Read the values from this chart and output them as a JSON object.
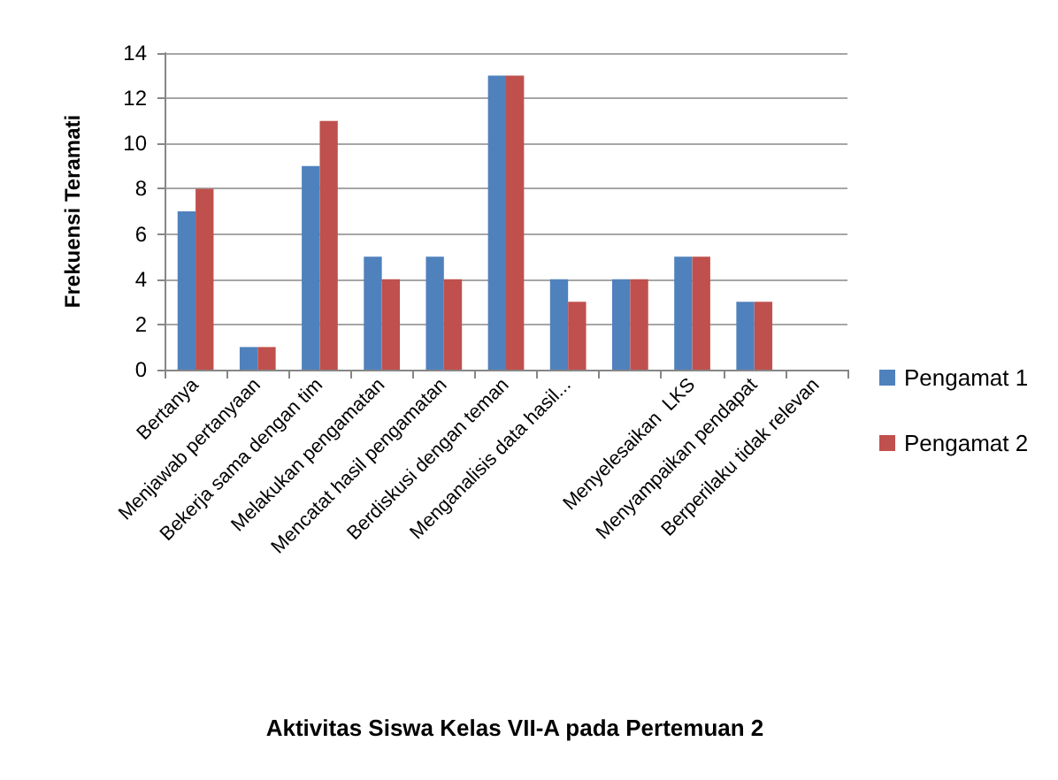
{
  "chart_data": {
    "type": "bar",
    "title": "Aktivitas Siswa Kelas VII-A pada Pertemuan 2",
    "ylabel": "Frekuensi Teramati",
    "categories": [
      "Bertanya",
      "Menjawab pertanyaan",
      "Bekerja sama dengan tim",
      "Melakukan pengamatan",
      "Mencatat hasil pengamatan",
      "Berdiskusi dengan teman",
      "Menganalisis data hasil...",
      null,
      "Menyelesaikan  LKS",
      "Menyampaikan pendapat",
      "Berperilaku tidak relevan"
    ],
    "series": [
      {
        "name": "Pengamat 1",
        "color": "#4f81bd",
        "values": [
          7,
          1,
          9,
          5,
          5,
          13,
          4,
          4,
          5,
          3,
          0
        ]
      },
      {
        "name": "Pengamat 2",
        "color": "#c0504d",
        "values": [
          8,
          1,
          11,
          4,
          4,
          13,
          3,
          4,
          5,
          3,
          0
        ]
      }
    ],
    "ylim": [
      0,
      14
    ],
    "yticks": [
      0,
      2,
      4,
      6,
      8,
      10,
      12,
      14
    ],
    "grid": "y",
    "legend": "right"
  }
}
